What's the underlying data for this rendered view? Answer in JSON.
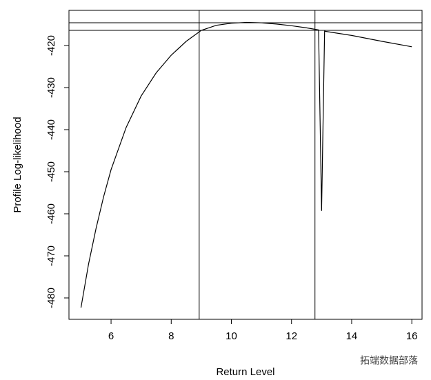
{
  "chart_data": {
    "type": "line",
    "xlabel": "Return Level",
    "ylabel": "Profile Log-likelihood",
    "x": [
      5.0,
      5.25,
      5.5,
      5.75,
      6.0,
      6.5,
      7.0,
      7.5,
      8.0,
      8.5,
      9.0,
      9.5,
      10.0,
      10.5,
      11.0,
      11.5,
      12.0,
      12.5,
      12.9,
      13.0,
      13.1,
      14.0,
      15.0,
      16.0
    ],
    "series": [
      {
        "color": "#000000",
        "values": [
          -482.3,
          -472,
          -463.5,
          -456,
          -449.5,
          -439.5,
          -432,
          -426.5,
          -422.3,
          -419,
          -416.4,
          -415.2,
          -414.7,
          -414.5,
          -414.6,
          -414.9,
          -415.3,
          -415.8,
          -416.3,
          -459.3,
          -416.6,
          -417.6,
          -419,
          -420.3
        ]
      }
    ],
    "hlines": [
      -414.6,
      -416.4
    ],
    "vlines": [
      8.93,
      12.78
    ],
    "xlim": [
      4.6,
      16.34
    ],
    "ylim": [
      -485.08,
      -411.64
    ],
    "xticks": [
      6,
      8,
      10,
      12,
      14,
      16
    ],
    "yticks": [
      -480,
      -470,
      -460,
      -450,
      -440,
      -430,
      -420
    ],
    "watermark": "拓端数据部落"
  }
}
